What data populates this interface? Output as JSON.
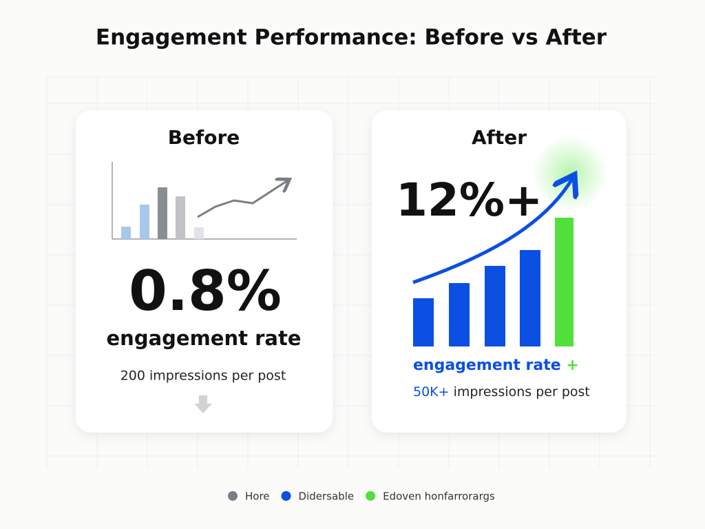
{
  "title": "Engagement Performance: Before vs After",
  "before": {
    "heading": "Before",
    "metric": "0.8%",
    "metric_label": "engagement rate",
    "detail": "200 impressions per post"
  },
  "after": {
    "heading": "After",
    "metric": "12%+",
    "metric_label": "engagement rate",
    "metric_label_mark": "+",
    "detail_value": "50K+",
    "detail_text": "impressions per post"
  },
  "legend": [
    {
      "name": "Hore",
      "color": "#7b7e86"
    },
    {
      "name": "Didersable",
      "color": "#0b4fe3"
    },
    {
      "name": "Edoven honfarrorargs",
      "color": "#52e03c"
    }
  ]
}
